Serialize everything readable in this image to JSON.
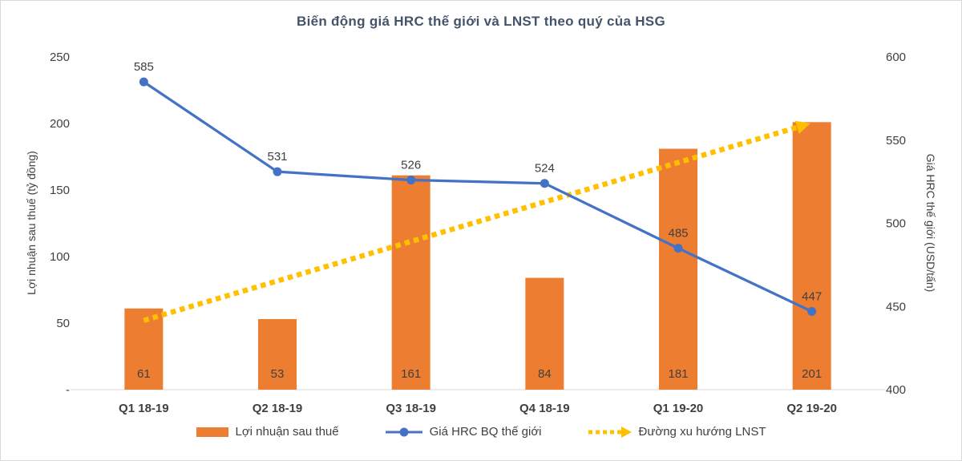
{
  "chart_data": {
    "type": "combo",
    "title": "Biến động giá HRC thế giới và LNST theo quý của HSG",
    "categories": [
      "Q1 18-19",
      "Q2 18-19",
      "Q3 18-19",
      "Q4 18-19",
      "Q1 19-20",
      "Q2 19-20"
    ],
    "series": [
      {
        "name": "Lợi nhuận sau thuế",
        "type": "bar",
        "axis": "left",
        "color": "#ED7D31",
        "values": [
          61,
          53,
          161,
          84,
          181,
          201
        ]
      },
      {
        "name": "Giá HRC BQ thế giới",
        "type": "line",
        "axis": "right",
        "color": "#4472C4",
        "values": [
          585,
          531,
          526,
          524,
          485,
          447
        ]
      },
      {
        "name": "Đường xu hướng LNST",
        "type": "trend",
        "axis": "left",
        "color": "#FFC000",
        "style": "dotted-arrow",
        "trend_start": 52,
        "trend_end": 200
      }
    ],
    "left_axis": {
      "label": "Lợi nhuận sau thuế (tỷ đồng)",
      "tick_labels": [
        "250",
        "200",
        "150",
        "100",
        "50",
        "-"
      ],
      "tick_values": [
        250,
        200,
        150,
        100,
        50,
        0
      ],
      "min": 0,
      "max": 250
    },
    "right_axis": {
      "label": "Giá HRC thế giới (USD/tấn)",
      "tick_labels": [
        "600",
        "550",
        "500",
        "450",
        "400"
      ],
      "tick_values": [
        600,
        550,
        500,
        450,
        400
      ],
      "min": 400,
      "max": 600
    },
    "legend": {
      "position": "bottom",
      "items": [
        "Lợi nhuận sau thuế",
        "Giá HRC BQ thế giới",
        "Đường xu hướng LNST"
      ]
    },
    "grid": "off",
    "text_color": "#404040",
    "title_color": "#44546A"
  }
}
